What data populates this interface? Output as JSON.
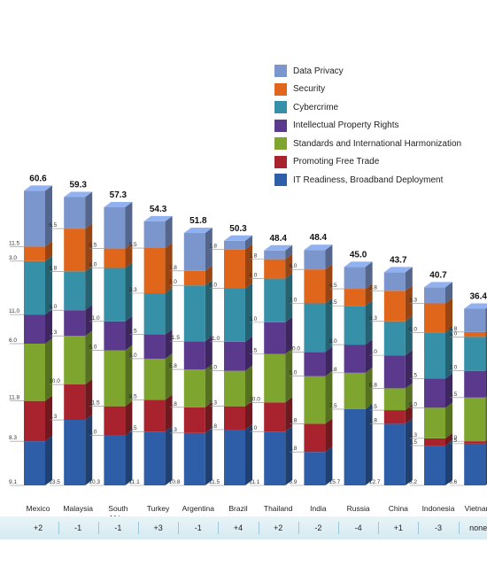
{
  "chart_data": {
    "type": "bar",
    "stacked": true,
    "categories": [
      "Mexico",
      "Malaysia",
      "South\nAfrica",
      "Turkey",
      "Argentina",
      "Brazil",
      "Thailand",
      "India",
      "Russia",
      "China",
      "Indonesia",
      "Vietnam"
    ],
    "totals": [
      "60.6",
      "59.3",
      "57.3",
      "54.3",
      "51.8",
      "50.3",
      "48.4",
      "48.4",
      "45.0",
      "43.7",
      "40.7",
      "36.4"
    ],
    "changes": [
      "+2",
      "-1",
      "-1",
      "+3",
      "-1",
      "+4",
      "+2",
      "-2",
      "-4",
      "+1",
      "-3",
      "none"
    ],
    "series": [
      {
        "name": "IT Readiness, Broadband Deployment",
        "color": "#2f5ea8",
        "values": [
          9.1,
          13.5,
          10.3,
          11.1,
          10.8,
          11.5,
          11.1,
          6.9,
          15.7,
          12.7,
          8.2,
          8.6
        ],
        "labels": [
          "9.1",
          "13.5",
          "10.3",
          "11.1",
          "10.8",
          "11.5",
          "11.1",
          "6.9",
          "15.7",
          "12.7",
          "8.2",
          "8.6"
        ]
      },
      {
        "name": "Promoting Free Trade",
        "color": "#a8232e",
        "values": [
          8.3,
          7.3,
          6.0,
          6.5,
          5.3,
          4.8,
          6.0,
          5.8,
          0,
          2.8,
          1.5,
          0.5
        ],
        "labels": [
          "8.3",
          "7.3",
          "6.0",
          "6.5",
          "5.3",
          "4.8",
          "6.0",
          "5.8",
          "",
          "2.8",
          "1.5",
          "0.5"
        ]
      },
      {
        "name": "Standards and International Harmonization",
        "color": "#7ea62f",
        "values": [
          11.8,
          10.0,
          11.5,
          8.5,
          7.8,
          7.3,
          10.0,
          9.8,
          7.5,
          4.5,
          6.3,
          9.0
        ],
        "labels": [
          "11.8",
          "10.0",
          "11.5",
          "8.5",
          "7.8",
          "7.3",
          "10.0",
          "9.8",
          "7.5",
          "4.5",
          "6.3",
          "9.0"
        ]
      },
      {
        "name": "Intellectual Property Rights",
        "color": "#5b3a8e",
        "values": [
          6.0,
          5.3,
          6.0,
          5.0,
          5.8,
          6.0,
          6.5,
          5.0,
          5.8,
          6.8,
          6.0,
          5.5
        ],
        "labels": [
          "6.0",
          "5.3",
          "6.0",
          "5.0",
          "5.8",
          "6.0",
          "6.5",
          "5.0",
          "5.8",
          "6.8",
          "6.0",
          "5.5"
        ]
      },
      {
        "name": "Cybercrime",
        "color": "#3690a8",
        "values": [
          11.0,
          8.0,
          11.0,
          8.5,
          11.5,
          11.0,
          9.0,
          10.0,
          8.0,
          7.0,
          9.5,
          7.0
        ],
        "labels": [
          "11.0",
          "8.0",
          "11.0",
          "8.5",
          "11.5",
          "11.0",
          "9.0",
          "10.0",
          "8.0",
          "7.0",
          "9.5",
          "7.0"
        ]
      },
      {
        "name": "Security",
        "color": "#e0661c",
        "values": [
          3.0,
          8.8,
          4.0,
          9.3,
          3.0,
          8.0,
          4.0,
          7.0,
          3.5,
          6.3,
          6.0,
          1.0
        ],
        "labels": [
          "3.0",
          "8.8",
          "4.0",
          "9.3",
          "3.0",
          "8.0",
          "4.0",
          "7.0",
          "3.5",
          "6.3",
          "6.0",
          "1.0"
        ]
      },
      {
        "name": "Data Privacy",
        "color": "#7b96cc",
        "values": [
          11.5,
          6.5,
          8.5,
          5.5,
          7.8,
          1.8,
          1.8,
          4.0,
          4.5,
          3.8,
          3.3,
          4.8
        ],
        "labels": [
          "11.5",
          "6.5",
          "8.5",
          "5.5",
          "7.8",
          "1.8",
          "1.8",
          "4.0",
          "4.5",
          "3.8",
          "3.3",
          "4.8"
        ]
      }
    ],
    "legend_order": [
      "Data Privacy",
      "Security",
      "Cybercrime",
      "Intellectual Property Rights",
      "Standards and International Harmonization",
      "Promoting Free Trade",
      "IT Readiness, Broadband Deployment"
    ],
    "ylim": [
      0,
      63
    ],
    "grid": false,
    "legend_position": "top-right"
  }
}
